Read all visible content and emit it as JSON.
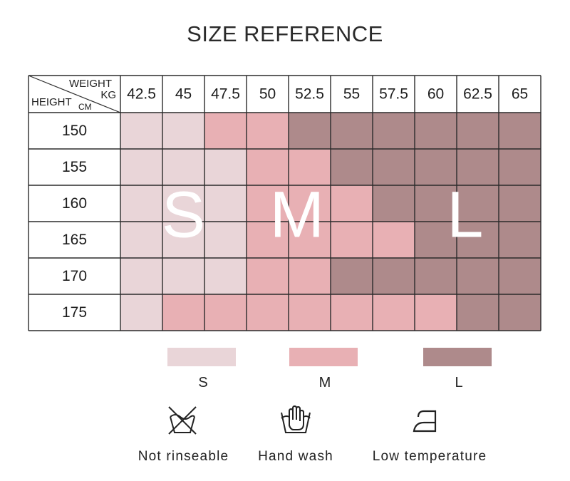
{
  "title": "SIZE REFERENCE",
  "chart_data": {
    "type": "heatmap",
    "title": "SIZE REFERENCE",
    "header_top_label": "WEIGHT",
    "header_top_unit": "KG",
    "header_side_label": "HEIGHT",
    "header_side_unit": "CM",
    "x": [
      "42.5",
      "45",
      "47.5",
      "50",
      "52.5",
      "55",
      "57.5",
      "60",
      "62.5",
      "65"
    ],
    "y": [
      "150",
      "155",
      "160",
      "165",
      "170",
      "175"
    ],
    "cells": [
      [
        "S",
        "S",
        "M",
        "M",
        "L",
        "L",
        "L",
        "L",
        "L",
        "L"
      ],
      [
        "S",
        "S",
        "S",
        "M",
        "M",
        "L",
        "L",
        "L",
        "L",
        "L"
      ],
      [
        "S",
        "S",
        "S",
        "M",
        "M",
        "M",
        "L",
        "L",
        "L",
        "L"
      ],
      [
        "S",
        "S",
        "S",
        "M",
        "M",
        "M",
        "M",
        "L",
        "L",
        "L"
      ],
      [
        "S",
        "S",
        "S",
        "M",
        "M",
        "L",
        "L",
        "L",
        "L",
        "L"
      ],
      [
        "S",
        "M",
        "M",
        "M",
        "M",
        "M",
        "M",
        "M",
        "L",
        "L"
      ]
    ],
    "region_labels": [
      "S",
      "M",
      "L"
    ],
    "colors": {
      "S": "#e9d5d8",
      "M": "#e8b0b4",
      "L": "#ae8a8b"
    }
  },
  "legend": [
    {
      "label": "S",
      "color": "#e9d5d8"
    },
    {
      "label": "M",
      "color": "#e8b0b4"
    },
    {
      "label": "L",
      "color": "#ae8a8b"
    }
  ],
  "care": [
    {
      "icon": "no-wash-icon",
      "label": "Not rinseable"
    },
    {
      "icon": "hand-wash-icon",
      "label": "Hand wash"
    },
    {
      "icon": "iron-low-icon",
      "label": "Low temperature"
    }
  ]
}
